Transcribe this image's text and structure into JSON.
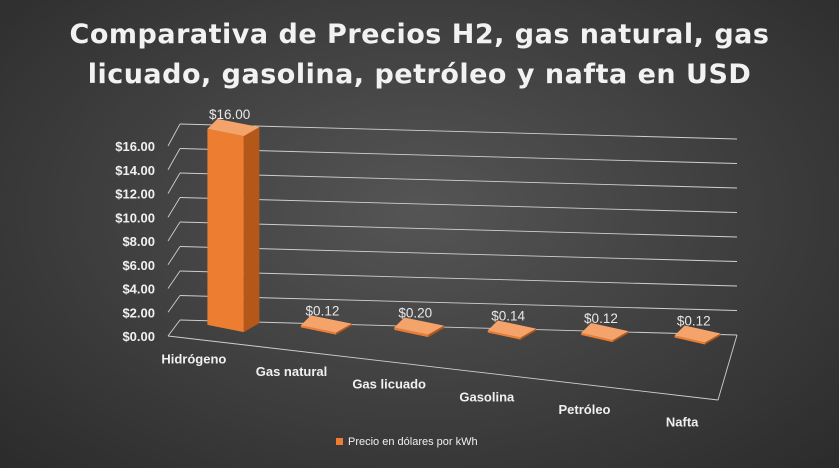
{
  "chart_data": {
    "type": "bar",
    "title": "Comparativa de Precios H2, gas natural, gas licuado, gasolina, petróleo y nafta en USD",
    "title_lines": [
      "Comparativa de Precios H2, gas natural, gas",
      "licuado, gasolina, petróleo y nafta en USD"
    ],
    "categories": [
      "Hidrógeno",
      "Gas natural",
      "Gas licuado",
      "Gasolina",
      "Petróleo",
      "Nafta"
    ],
    "series": [
      {
        "name": "Precio en dólares por kWh",
        "values": [
          16.0,
          0.12,
          0.2,
          0.14,
          0.12,
          0.12
        ],
        "labels": [
          "$16.00",
          "$0.12",
          "$0.20",
          "$0.14",
          "$0.12",
          "$0.12"
        ]
      }
    ],
    "y_ticks": [
      "$0.00",
      "$2.00",
      "$4.00",
      "$6.00",
      "$8.00",
      "$10.00",
      "$12.00",
      "$14.00",
      "$16.00"
    ],
    "ylim": [
      0,
      16
    ],
    "grid": true,
    "legend_position": "bottom",
    "colors": {
      "bar_front": "#ed7d31",
      "bar_side": "#b35818",
      "bar_top": "#f4a36a",
      "gridline": "#cfcfcf",
      "text": "#f0f0f0"
    }
  }
}
